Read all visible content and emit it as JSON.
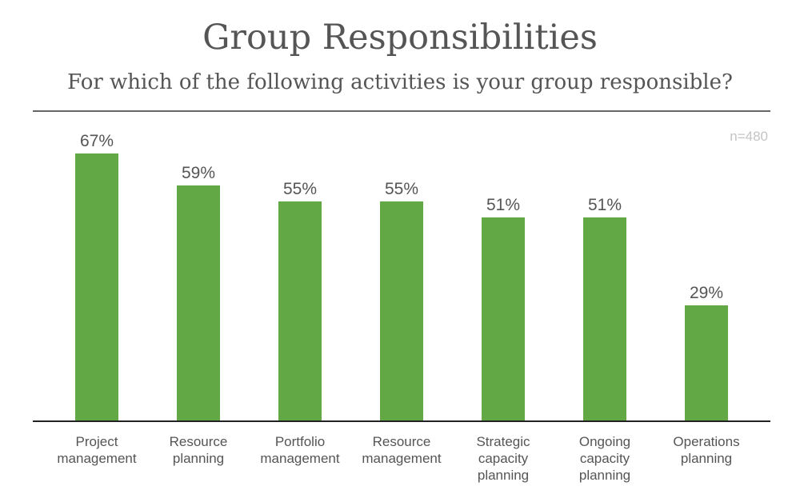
{
  "chart_data": {
    "type": "bar",
    "title": "Group Responsibilities",
    "subtitle": "For which of the following activities is your group responsible?",
    "sample_note": "n=480",
    "categories": [
      "Project management",
      "Resource planning",
      "Portfolio management",
      "Resource management",
      "Strategic capacity planning",
      "Ongoing capacity planning",
      "Operations planning"
    ],
    "category_lines": [
      [
        "Project",
        "management"
      ],
      [
        "Resource",
        "planning"
      ],
      [
        "Portfolio",
        "management"
      ],
      [
        "Resource",
        "management"
      ],
      [
        "Strategic",
        "capacity",
        "planning"
      ],
      [
        "Ongoing",
        "capacity",
        "planning"
      ],
      [
        "Operations",
        "planning"
      ]
    ],
    "values": [
      67,
      59,
      55,
      55,
      51,
      51,
      29
    ],
    "value_labels": [
      "67%",
      "59%",
      "55%",
      "55%",
      "51%",
      "51%",
      "29%"
    ],
    "ylim": [
      0,
      100
    ],
    "bar_color": "#62a844",
    "grid": false
  }
}
